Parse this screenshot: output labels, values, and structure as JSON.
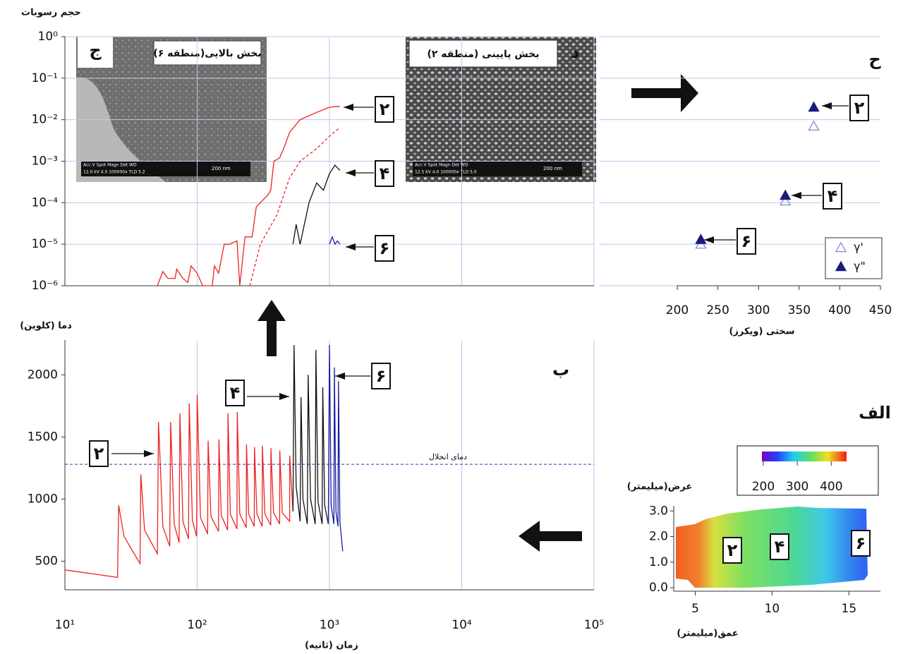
{
  "chart_data": [
    {
      "type": "line",
      "y_label": "حجم رسوبات",
      "log_x": true,
      "log_y": true,
      "grid": true,
      "xlim": [
        10,
        100000
      ],
      "xticks": [
        10,
        100,
        1000,
        10000,
        100000
      ],
      "ylim": [
        1e-06,
        1
      ],
      "yticks": [
        {
          "value": 1,
          "label": "10⁰"
        },
        {
          "value": 0.1,
          "label": "10⁻¹"
        },
        {
          "value": 0.01,
          "label": "10⁻²"
        },
        {
          "value": 0.001,
          "label": "10⁻³"
        },
        {
          "value": 0.0001,
          "label": "10⁻⁴"
        },
        {
          "value": 1e-05,
          "label": "10⁻⁵"
        },
        {
          "value": 1e-06,
          "label": "10⁻⁶"
        }
      ],
      "annotations": [
        "۲",
        "۴",
        "۶"
      ],
      "series": [
        {
          "color": "#ee2222",
          "dash": false,
          "x": [
            50,
            55,
            60,
            68,
            70,
            78,
            85,
            90,
            100,
            110,
            130,
            135,
            145,
            160,
            175,
            200,
            210,
            230,
            260,
            280,
            300,
            340,
            360,
            380,
            420,
            450,
            500,
            600,
            800,
            1000,
            1200
          ],
          "values": [
            1e-06,
            2.2e-06,
            1.5e-06,
            1.5e-06,
            2.5e-06,
            1.5e-06,
            1.2e-06,
            3e-06,
            2e-06,
            1e-06,
            1e-06,
            3e-06,
            2e-06,
            1e-05,
            1e-05,
            1.2e-05,
            1e-06,
            1.5e-05,
            1.5e-05,
            8e-05,
            0.0001,
            0.00015,
            0.0002,
            0.001,
            0.0012,
            0.002,
            0.005,
            0.01,
            0.015,
            0.02,
            0.021
          ]
        },
        {
          "color": "#ee2222",
          "dash": true,
          "x": [
            250,
            300,
            400,
            500,
            600,
            800,
            1000,
            1200
          ],
          "values": [
            1e-06,
            1e-05,
            5e-05,
            0.0004,
            0.001,
            0.002,
            0.004,
            0.0065
          ]
        },
        {
          "color": "#111111",
          "dash": false,
          "x": [
            530,
            560,
            600,
            700,
            800,
            900,
            1000,
            1100,
            1200
          ],
          "values": [
            1e-05,
            3e-05,
            1e-05,
            0.0001,
            0.0003,
            0.0002,
            0.0005,
            0.0008,
            0.0006
          ]
        },
        {
          "color": "#1a1aa0",
          "dash": false,
          "x": [
            1000,
            1050,
            1100,
            1150,
            1200
          ],
          "values": [
            1e-05,
            1.5e-05,
            1e-05,
            1.2e-05,
            1e-05
          ]
        }
      ]
    },
    {
      "type": "scatter",
      "panel_label": "ح",
      "x_label": "سختی (ویکرز)",
      "log_y": true,
      "grid": true,
      "xlim": [
        200,
        450
      ],
      "xticks": [
        200,
        250,
        300,
        350,
        400,
        450
      ],
      "ylim": [
        1e-06,
        1
      ],
      "yticks": [
        1e-06,
        1e-05,
        0.0001,
        0.001,
        0.01,
        0.1,
        1
      ],
      "annotations": [
        "۲",
        "۴",
        "۶"
      ],
      "series": [
        {
          "name": "γ'",
          "color": "#8a8ad0",
          "filled": false,
          "x": [
            368,
            333,
            229
          ],
          "values": [
            0.007,
            0.00011,
            1e-05
          ]
        },
        {
          "name": "γ\"",
          "color": "#1a1a80",
          "filled": true,
          "x": [
            368,
            333,
            229
          ],
          "values": [
            0.02,
            0.00015,
            1.3e-05
          ]
        }
      ]
    },
    {
      "type": "line",
      "panel_label": "ب",
      "y_label": "دما (کلوین)",
      "x_label": "زمان (ثانیه)",
      "log_x": true,
      "grid": true,
      "xlim": [
        10,
        100000
      ],
      "xticks": [
        {
          "value": 10,
          "label": "10¹"
        },
        {
          "value": 100,
          "label": "10²"
        },
        {
          "value": 1000,
          "label": "10³"
        },
        {
          "value": 10000,
          "label": "10⁴"
        },
        {
          "value": 100000,
          "label": "10⁵"
        }
      ],
      "ylim": [
        270,
        2280
      ],
      "yticks": [
        500,
        1000,
        1500,
        2000
      ],
      "reference_line": {
        "value": 1280,
        "label": "دمای انحلال",
        "color": "#3333aa"
      },
      "annotations": [
        "۲",
        "۴",
        "۶"
      ],
      "series": [
        {
          "color": "#ee2222",
          "x": [
            10,
            25,
            25.5,
            28,
            37,
            37.5,
            40,
            50,
            51,
            55,
            62,
            63,
            67,
            73,
            74,
            78,
            86,
            87,
            92,
            99,
            100,
            106,
            120,
            121,
            127,
            145,
            146,
            152,
            170,
            171,
            178,
            200,
            201,
            210,
            235,
            236,
            245,
            270,
            271,
            283,
            310,
            311,
            325,
            360,
            361,
            378,
            420,
            421,
            440,
            500,
            501,
            530
          ],
          "values": [
            430,
            370,
            950,
            700,
            480,
            1200,
            750,
            560,
            1620,
            780,
            620,
            1620,
            800,
            650,
            1690,
            820,
            680,
            1770,
            830,
            700,
            1840,
            850,
            720,
            1470,
            860,
            740,
            1480,
            870,
            750,
            1690,
            880,
            760,
            1700,
            880,
            770,
            1440,
            880,
            780,
            1420,
            880,
            780,
            1430,
            880,
            790,
            1410,
            890,
            800,
            1390,
            890,
            820,
            1350,
            900
          ]
        },
        {
          "color": "#111111",
          "x": [
            530,
            540,
            560,
            600,
            610,
            630,
            680,
            690,
            720,
            780,
            790,
            820,
            880,
            890,
            920,
            980
          ],
          "values": [
            900,
            2240,
            1100,
            820,
            1820,
            1000,
            800,
            2000,
            1000,
            800,
            2200,
            980,
            800,
            1900,
            950,
            800
          ]
        },
        {
          "color": "#1a1aa0",
          "x": [
            980,
            1000,
            1030,
            1080,
            1090,
            1120,
            1160,
            1170,
            1200,
            1260
          ],
          "values": [
            800,
            2240,
            950,
            800,
            2060,
            900,
            780,
            1950,
            820,
            580
          ]
        }
      ]
    },
    {
      "type": "heatmap",
      "panel_label": "الف",
      "y_label": "عرض(میلیمتر)",
      "x_label": "عمق(میلیمتر)",
      "xlim": [
        3.6,
        17.05
      ],
      "xticks": [
        5,
        10,
        15
      ],
      "ylim": [
        0,
        3.2
      ],
      "yticks": [
        {
          "value": 0,
          "label": "0.0"
        },
        {
          "value": 1,
          "label": "1.0"
        },
        {
          "value": 2,
          "label": "2.0"
        },
        {
          "value": 3,
          "label": "3.0"
        }
      ],
      "clim": [
        196,
        445
      ],
      "cticks": [
        200,
        300,
        400
      ],
      "annotations": [
        "۲",
        "۴",
        "۶"
      ]
    }
  ],
  "insets": [
    {
      "label": "ج",
      "caption": "بخش بالایی(منطقه ۶)",
      "info": "Acc.V  Spot Magn   Det  WD",
      "info2": "12.0 kV 4.0 100000x TLD 5.2",
      "scale": "200 nm"
    },
    {
      "label": "د",
      "caption": "بخش پایینی (منطقه ۲)",
      "info": "Acc.V  Spot Magn   Det  WD",
      "info2": "12.5 kV 4.0 100000x TLD 5.0",
      "scale": "200 nm"
    }
  ]
}
